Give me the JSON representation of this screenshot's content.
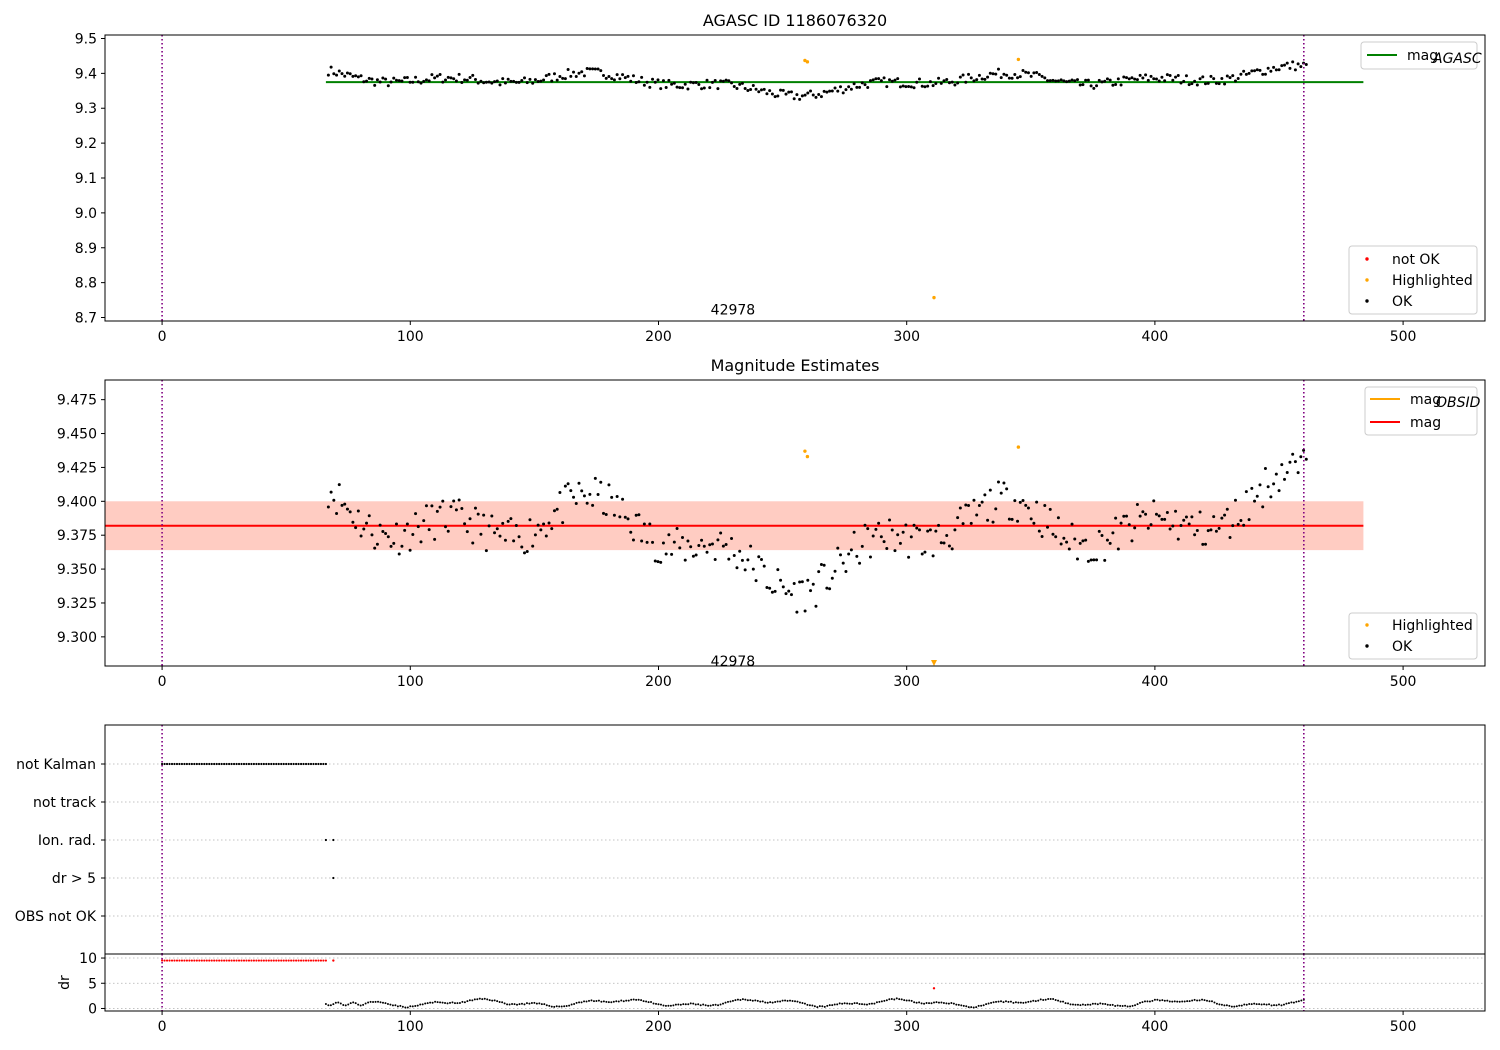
{
  "colors": {
    "ok": "#000000",
    "highlighted": "#ffa500",
    "not_ok": "#ff0000",
    "agasc_line": "#008000",
    "obsid_line": "#ffa500",
    "mag_line": "#ff0000",
    "mag_band": "#ffc0cb",
    "obsid_band": "#ffa07a",
    "obs_boundary": "#800080",
    "grid": "#b0b0b0"
  },
  "chart_data": [
    {
      "id": "top",
      "type": "scatter",
      "title": "AGASC ID 1186076320",
      "xlim": [
        -23,
        533
      ],
      "ylim": [
        8.69,
        9.51
      ],
      "xticks": [
        "0",
        "100",
        "200",
        "300",
        "400",
        "500"
      ],
      "yticks": [
        "8.7",
        "8.8",
        "8.9",
        "9.0",
        "9.1",
        "9.2",
        "9.3",
        "9.4",
        "9.5"
      ],
      "obs_boundaries": [
        0,
        460
      ],
      "obsid_annotation": {
        "label": "42978",
        "x": 230,
        "y": 8.72
      },
      "reference_lines": [
        {
          "name": "mag_AGASC",
          "y": 9.375,
          "x_range": [
            66,
            484
          ],
          "color_key": "agasc_line"
        }
      ],
      "legend_lines": [
        {
          "base": "mag",
          "sub": "AGASC",
          "color_key": "agasc_line"
        }
      ],
      "legend_points": [
        {
          "label": "not OK",
          "color_key": "not_ok"
        },
        {
          "label": "Highlighted",
          "color_key": "highlighted"
        },
        {
          "label": "OK",
          "color_key": "ok"
        }
      ],
      "series_ok": {
        "x_range": [
          67,
          461
        ],
        "count": 360,
        "base": 9.38,
        "pattern": "wavy"
      },
      "series_highlighted": {
        "x": [
          259,
          260,
          311,
          345
        ],
        "y": [
          9.437,
          9.433,
          8.757,
          9.44
        ]
      }
    },
    {
      "id": "middle",
      "type": "scatter",
      "title": "Magnitude Estimates",
      "xlim": [
        -23,
        533
      ],
      "ylim": [
        9.2785,
        9.4895
      ],
      "xticks": [
        "0",
        "100",
        "200",
        "300",
        "400",
        "500"
      ],
      "yticks": [
        "9.300",
        "9.325",
        "9.350",
        "9.375",
        "9.400",
        "9.425",
        "9.450",
        "9.475"
      ],
      "obs_boundaries": [
        0,
        460
      ],
      "obsid_annotation": {
        "label": "42978",
        "x": 230,
        "y": 9.2815
      },
      "bands": [
        {
          "y_range": [
            9.364,
            9.4
          ],
          "x_range": [
            -23,
            484
          ],
          "color_key": "mag_band"
        },
        {
          "y_range": [
            9.364,
            9.4
          ],
          "x_range": [
            -23,
            484
          ],
          "color_key": "obsid_band"
        }
      ],
      "reference_lines": [
        {
          "name": "mag",
          "y": 9.382,
          "x_range": [
            -23,
            484
          ],
          "color_key": "mag_line"
        }
      ],
      "legend_lines": [
        {
          "base": "mag",
          "sub": "OBSID",
          "color_key": "obsid_line"
        },
        {
          "base": "mag",
          "sub": "",
          "color_key": "mag_line"
        }
      ],
      "legend_points": [
        {
          "label": "Highlighted",
          "color_key": "highlighted"
        },
        {
          "label": "OK",
          "color_key": "ok"
        }
      ],
      "series_ok": {
        "x_range": [
          67,
          461
        ],
        "count": 360,
        "base": 9.38,
        "pattern": "wavy"
      },
      "series_highlighted": {
        "x": [
          259,
          260,
          345
        ],
        "y": [
          9.437,
          9.433,
          9.44
        ]
      },
      "below_axis_marker": {
        "x": 311
      }
    },
    {
      "id": "flags",
      "type": "scatter",
      "xlim": [
        -23,
        533
      ],
      "categories": [
        "not Kalman",
        "not track",
        "Ion. rad.",
        "dr > 5",
        "OBS not OK"
      ],
      "obs_boundaries": [
        0,
        460
      ],
      "flag_points": [
        {
          "category": "not Kalman",
          "x_range": [
            0,
            66
          ],
          "step": 1
        },
        {
          "category": "Ion. rad.",
          "x": [
            66,
            69
          ]
        },
        {
          "category": "dr > 5",
          "x": [
            69
          ]
        }
      ]
    },
    {
      "id": "dr",
      "type": "scatter",
      "xlim": [
        -23,
        533
      ],
      "ylim": [
        -0.5,
        10.8
      ],
      "ylabel": "dr",
      "yticks": [
        "0",
        "5",
        "10"
      ],
      "xticks": [
        "0",
        "100",
        "200",
        "300",
        "400",
        "500"
      ],
      "obs_boundaries": [
        0,
        460
      ],
      "series_not_ok": {
        "x_range": [
          0,
          66
        ],
        "step": 1,
        "y": 9.5,
        "extra_x": [
          69,
          311
        ],
        "extra_y": [
          9.5,
          4.0
        ]
      },
      "series_ok": {
        "x_range": [
          66,
          460
        ],
        "step": 1,
        "base": 1.2,
        "pattern": "wavy"
      }
    }
  ]
}
